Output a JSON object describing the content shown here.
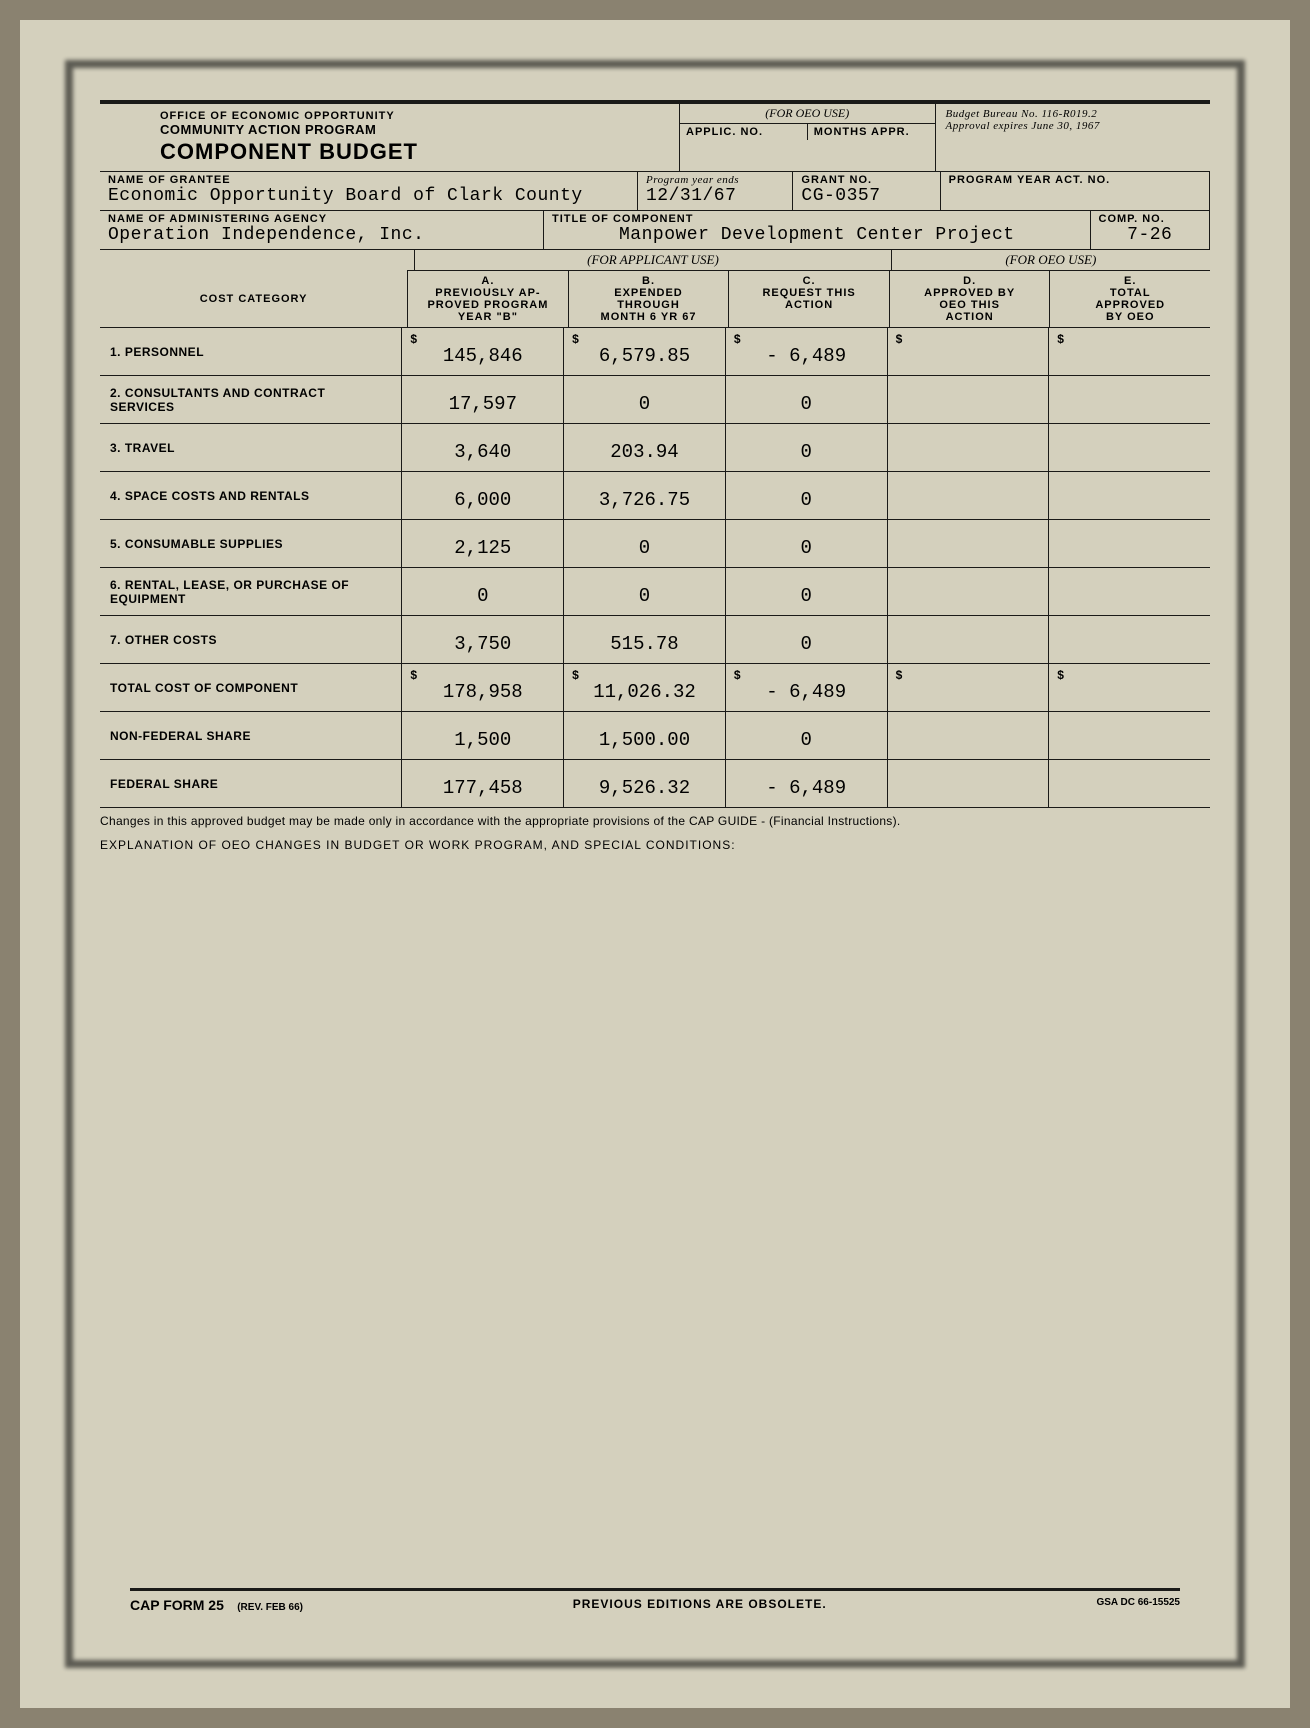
{
  "header": {
    "office": "OFFICE OF ECONOMIC OPPORTUNITY",
    "program": "COMMUNITY ACTION PROGRAM",
    "title": "COMPONENT BUDGET",
    "oeo_use": "(FOR OEO USE)",
    "applic_no_label": "APPLIC. NO.",
    "months_appr_label": "MONTHS APPR.",
    "budget_bureau": "Budget Bureau No. 116-R019.2",
    "approval_expires": "Approval expires June 30, 1967"
  },
  "grantee": {
    "name_label": "NAME OF GRANTEE",
    "name": "Economic Opportunity Board of Clark County",
    "prog_year_label": "Program year ends",
    "prog_year": "12/31/67",
    "grant_no_label": "GRANT NO.",
    "grant_no": "CG-0357",
    "prog_act_label": "PROGRAM YEAR ACT. NO."
  },
  "agency": {
    "name_label": "NAME OF ADMINISTERING AGENCY",
    "name": "Operation Independence, Inc.",
    "title_label": "TITLE OF COMPONENT",
    "title": "Manpower Development Center Project",
    "comp_no_label": "COMP. NO.",
    "comp_no": "7-26"
  },
  "table": {
    "for_applicant": "(FOR APPLICANT USE)",
    "for_oeo": "(FOR OEO USE)",
    "cat_header": "COST CATEGORY",
    "col_a": "A.\nPREVIOUSLY AP-\nPROVED PROGRAM\nYEAR \"B\"",
    "col_b": "B.\nEXPENDED\nTHROUGH\nMONTH 6 YR 67",
    "col_c": "C.\nREQUEST THIS\nACTION",
    "col_d": "D.\nAPPROVED BY\nOEO THIS\nACTION",
    "col_e": "E.\nTOTAL\nAPPROVED\nBY OEO",
    "rows": [
      {
        "cat": "1. PERSONNEL",
        "a": "145,846",
        "b": "6,579.85",
        "c": "- 6,489",
        "dollar": true
      },
      {
        "cat": "2. CONSULTANTS AND CONTRACT SERVICES",
        "a": "17,597",
        "b": "0",
        "c": "0"
      },
      {
        "cat": "3. TRAVEL",
        "a": "3,640",
        "b": "203.94",
        "c": "0"
      },
      {
        "cat": "4. SPACE COSTS AND RENTALS",
        "a": "6,000",
        "b": "3,726.75",
        "c": "0"
      },
      {
        "cat": "5. CONSUMABLE SUPPLIES",
        "a": "2,125",
        "b": "0",
        "c": "0"
      },
      {
        "cat": "6. RENTAL, LEASE, OR PURCHASE OF EQUIPMENT",
        "a": "0",
        "b": "0",
        "c": "0"
      },
      {
        "cat": "7. OTHER COSTS",
        "a": "3,750",
        "b": "515.78",
        "c": "0"
      },
      {
        "cat": "TOTAL COST OF COMPONENT",
        "a": "178,958",
        "b": "11,026.32",
        "c": "- 6,489",
        "dollar": true
      },
      {
        "cat": "NON-FEDERAL SHARE",
        "a": "1,500",
        "b": "1,500.00",
        "c": "0"
      },
      {
        "cat": "FEDERAL SHARE",
        "a": "177,458",
        "b": "9,526.32",
        "c": "- 6,489"
      }
    ]
  },
  "notes": {
    "changes": "Changes in this approved budget may be made only in accordance with the appropriate provisions of the CAP GUIDE - (Financial Instructions).",
    "explanation": "EXPLANATION OF OEO CHANGES IN BUDGET OR WORK PROGRAM, AND SPECIAL CONDITIONS:"
  },
  "footer": {
    "form_no": "CAP FORM 25",
    "rev": "(REV. FEB 66)",
    "obsolete": "PREVIOUS EDITIONS ARE OBSOLETE.",
    "gsa": "GSA DC 66-15525"
  }
}
